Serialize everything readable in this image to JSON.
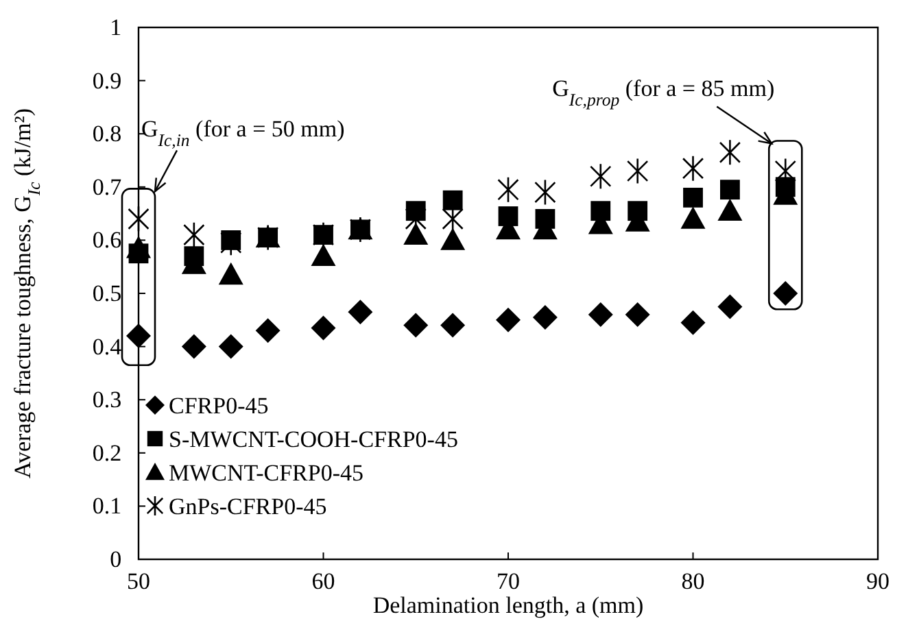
{
  "chart_data": {
    "type": "scatter",
    "xlabel": "Delamination length, a (mm)",
    "ylabel": "Average fracture toughness, G$_{Ic}$ (kJ/m²)",
    "x": [
      50,
      53,
      55,
      57,
      60,
      62,
      65,
      67,
      70,
      72,
      75,
      77,
      80,
      82,
      85
    ],
    "xlim": [
      50,
      90
    ],
    "xticks": [
      50,
      60,
      70,
      80,
      90
    ],
    "ylim": [
      0,
      1
    ],
    "yticks": [
      0,
      0.1,
      0.2,
      0.3,
      0.4,
      0.5,
      0.6,
      0.7,
      0.8,
      0.9,
      1
    ],
    "legend": "bottom left",
    "grid": false,
    "series": [
      {
        "name": "CFRP0-45",
        "color": "#000000",
        "marker": "diamond",
        "values": [
          0.42,
          0.4,
          0.4,
          0.43,
          0.435,
          0.465,
          0.44,
          0.44,
          0.45,
          0.455,
          0.46,
          0.46,
          0.445,
          0.475,
          0.5
        ]
      },
      {
        "name": "S-MWCNT-COOH-CFRP0-45",
        "color": "#000000",
        "marker": "square",
        "values": [
          0.575,
          0.57,
          0.6,
          0.605,
          0.61,
          0.62,
          0.655,
          0.675,
          0.645,
          0.64,
          0.655,
          0.655,
          0.68,
          0.695,
          0.7
        ]
      },
      {
        "name": "MWCNT-CFRP0-45",
        "color": "#000000",
        "marker": "triangle",
        "values": [
          0.585,
          0.555,
          0.535,
          0.605,
          0.57,
          0.62,
          0.61,
          0.6,
          0.62,
          0.62,
          0.63,
          0.635,
          0.64,
          0.655,
          0.685
        ]
      },
      {
        "name": "GnPs-CFRP0-45",
        "color": "#000000",
        "marker": "cross",
        "values": [
          0.64,
          0.61,
          0.595,
          0.605,
          0.61,
          0.62,
          0.64,
          0.64,
          0.695,
          0.69,
          0.72,
          0.73,
          0.735,
          0.765,
          0.73
        ]
      }
    ],
    "annotations": [
      {
        "text": "G$_{Ic,in}$ (for a = 50 mm)",
        "x": 50,
        "y": 0.64
      },
      {
        "text": "G$_{Ic,prop}$ (for a = 85 mm)",
        "x": 85,
        "y": 0.73
      }
    ]
  }
}
